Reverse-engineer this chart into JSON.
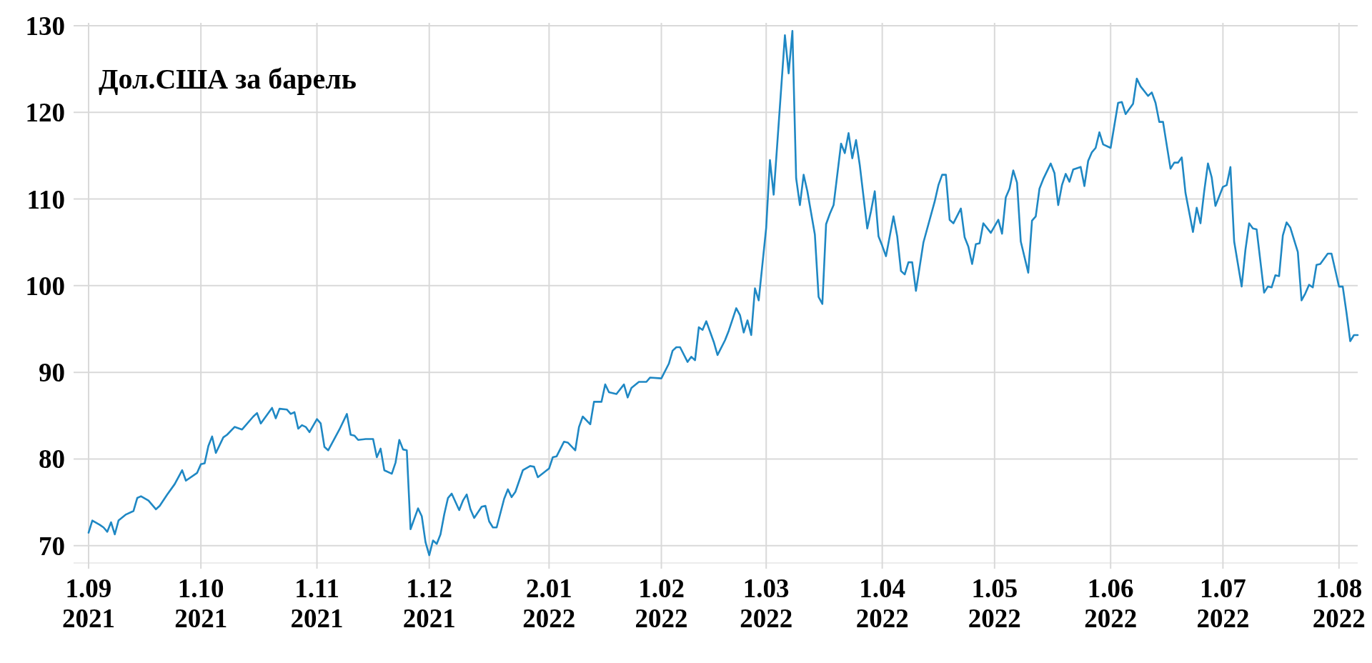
{
  "chart_data": {
    "type": "line",
    "title": "Дол.США за барель",
    "x": [
      "2021-09-01",
      "2021-09-02",
      "2021-09-04",
      "2021-09-05",
      "2021-09-06",
      "2021-09-07",
      "2021-09-08",
      "2021-09-09",
      "2021-09-11",
      "2021-09-13",
      "2021-09-14",
      "2021-09-15",
      "2021-09-17",
      "2021-09-19",
      "2021-09-20",
      "2021-09-22",
      "2021-09-24",
      "2021-09-26",
      "2021-09-27",
      "2021-09-30",
      "2021-10-01",
      "2021-10-02",
      "2021-10-03",
      "2021-10-04",
      "2021-10-05",
      "2021-10-07",
      "2021-10-08",
      "2021-10-10",
      "2021-10-12",
      "2021-10-15",
      "2021-10-16",
      "2021-10-17",
      "2021-10-20",
      "2021-10-21",
      "2021-10-22",
      "2021-10-24",
      "2021-10-25",
      "2021-10-26",
      "2021-10-27",
      "2021-10-28",
      "2021-10-29",
      "2021-10-30",
      "2021-11-01",
      "2021-11-02",
      "2021-11-03",
      "2021-11-04",
      "2021-11-06",
      "2021-11-07",
      "2021-11-09",
      "2021-11-10",
      "2021-11-11",
      "2021-11-12",
      "2021-11-14",
      "2021-11-16",
      "2021-11-17",
      "2021-11-18",
      "2021-11-19",
      "2021-11-21",
      "2021-11-22",
      "2021-11-23",
      "2021-11-24",
      "2021-11-25",
      "2021-11-26",
      "2021-11-28",
      "2021-11-29",
      "2021-11-30",
      "2021-12-01",
      "2021-12-02",
      "2021-12-03",
      "2021-12-04",
      "2021-12-05",
      "2021-12-06",
      "2021-12-07",
      "2021-12-09",
      "2021-12-10",
      "2021-12-11",
      "2021-12-12",
      "2021-12-13",
      "2021-12-15",
      "2021-12-16",
      "2021-12-17",
      "2021-12-18",
      "2021-12-19",
      "2021-12-21",
      "2021-12-22",
      "2021-12-23",
      "2021-12-24",
      "2021-12-26",
      "2021-12-28",
      "2021-12-29",
      "2021-12-30",
      "2022-01-02",
      "2022-01-03",
      "2022-01-04",
      "2022-01-06",
      "2022-01-07",
      "2022-01-09",
      "2022-01-10",
      "2022-01-11",
      "2022-01-13",
      "2022-01-14",
      "2022-01-16",
      "2022-01-17",
      "2022-01-18",
      "2022-01-20",
      "2022-01-22",
      "2022-01-23",
      "2022-01-24",
      "2022-01-26",
      "2022-01-28",
      "2022-01-29",
      "2022-02-01",
      "2022-02-03",
      "2022-02-04",
      "2022-02-05",
      "2022-02-06",
      "2022-02-08",
      "2022-02-09",
      "2022-02-10",
      "2022-02-11",
      "2022-02-12",
      "2022-02-13",
      "2022-02-15",
      "2022-02-16",
      "2022-02-18",
      "2022-02-19",
      "2022-02-21",
      "2022-02-22",
      "2022-02-23",
      "2022-02-24",
      "2022-02-25",
      "2022-02-26",
      "2022-02-27",
      "2022-03-01",
      "2022-03-02",
      "2022-03-03",
      "2022-03-06",
      "2022-03-07",
      "2022-03-08",
      "2022-03-09",
      "2022-03-10",
      "2022-03-11",
      "2022-03-12",
      "2022-03-14",
      "2022-03-15",
      "2022-03-16",
      "2022-03-17",
      "2022-03-18",
      "2022-03-19",
      "2022-03-21",
      "2022-03-22",
      "2022-03-23",
      "2022-03-24",
      "2022-03-25",
      "2022-03-26",
      "2022-03-28",
      "2022-03-29",
      "2022-03-30",
      "2022-03-31",
      "2022-04-01",
      "2022-04-02",
      "2022-04-04",
      "2022-04-05",
      "2022-04-06",
      "2022-04-07",
      "2022-04-08",
      "2022-04-09",
      "2022-04-10",
      "2022-04-12",
      "2022-04-15",
      "2022-04-16",
      "2022-04-17",
      "2022-04-18",
      "2022-04-19",
      "2022-04-20",
      "2022-04-22",
      "2022-04-23",
      "2022-04-24",
      "2022-04-25",
      "2022-04-26",
      "2022-04-27",
      "2022-04-28",
      "2022-04-30",
      "2022-05-02",
      "2022-05-03",
      "2022-05-04",
      "2022-05-05",
      "2022-05-06",
      "2022-05-07",
      "2022-05-08",
      "2022-05-10",
      "2022-05-11",
      "2022-05-12",
      "2022-05-13",
      "2022-05-14",
      "2022-05-16",
      "2022-05-17",
      "2022-05-18",
      "2022-05-19",
      "2022-05-20",
      "2022-05-21",
      "2022-05-22",
      "2022-05-24",
      "2022-05-25",
      "2022-05-26",
      "2022-05-27",
      "2022-05-28",
      "2022-05-29",
      "2022-05-30",
      "2022-06-01",
      "2022-06-03",
      "2022-06-04",
      "2022-06-05",
      "2022-06-07",
      "2022-06-08",
      "2022-06-09",
      "2022-06-11",
      "2022-06-12",
      "2022-06-13",
      "2022-06-14",
      "2022-06-15",
      "2022-06-17",
      "2022-06-18",
      "2022-06-19",
      "2022-06-20",
      "2022-06-21",
      "2022-06-23",
      "2022-06-24",
      "2022-06-25",
      "2022-06-26",
      "2022-06-27",
      "2022-06-28",
      "2022-06-29",
      "2022-07-01",
      "2022-07-02",
      "2022-07-03",
      "2022-07-04",
      "2022-07-06",
      "2022-07-07",
      "2022-07-08",
      "2022-07-09",
      "2022-07-10",
      "2022-07-12",
      "2022-07-13",
      "2022-07-14",
      "2022-07-15",
      "2022-07-16",
      "2022-07-17",
      "2022-07-18",
      "2022-07-19",
      "2022-07-21",
      "2022-07-22",
      "2022-07-23",
      "2022-07-24",
      "2022-07-25",
      "2022-07-26",
      "2022-07-27",
      "2022-07-29",
      "2022-07-30",
      "2022-08-01",
      "2022-08-02",
      "2022-08-03",
      "2022-08-04",
      "2022-08-05",
      "2022-08-06"
    ],
    "series": [
      {
        "color": "#1f88c4",
        "values": [
          71.5,
          72.9,
          72.4,
          72.1,
          71.6,
          72.7,
          71.3,
          72.9,
          73.6,
          74.0,
          75.5,
          75.7,
          75.2,
          74.2,
          74.6,
          75.9,
          77.1,
          78.7,
          77.5,
          78.4,
          79.4,
          79.5,
          81.5,
          82.6,
          80.7,
          82.5,
          82.8,
          83.7,
          83.4,
          84.9,
          85.3,
          84.1,
          85.9,
          84.7,
          85.8,
          85.7,
          85.2,
          85.4,
          83.5,
          83.9,
          83.7,
          83.1,
          84.6,
          84.1,
          81.4,
          81.0,
          82.6,
          83.4,
          85.2,
          82.8,
          82.7,
          82.2,
          82.3,
          82.3,
          80.2,
          81.2,
          78.7,
          78.3,
          79.6,
          82.2,
          81.1,
          81.0,
          71.9,
          74.3,
          73.4,
          70.4,
          68.9,
          70.6,
          70.2,
          71.3,
          73.6,
          75.5,
          76.0,
          74.1,
          75.2,
          75.9,
          74.2,
          73.2,
          74.5,
          74.6,
          72.8,
          72.1,
          72.1,
          75.4,
          76.5,
          75.6,
          76.2,
          78.7,
          79.2,
          79.1,
          77.9,
          78.9,
          80.2,
          80.3,
          82.0,
          81.9,
          81.0,
          83.7,
          84.9,
          84.0,
          86.6,
          86.6,
          88.6,
          87.7,
          87.5,
          88.6,
          87.1,
          88.2,
          88.9,
          88.9,
          89.4,
          89.3,
          91.0,
          92.5,
          92.9,
          92.9,
          91.2,
          91.8,
          91.4,
          95.2,
          94.9,
          95.9,
          93.5,
          92.0,
          93.7,
          94.8,
          97.4,
          96.6,
          94.6,
          96.0,
          94.3,
          99.7,
          98.3,
          106.7,
          114.5,
          110.5,
          128.9,
          124.5,
          129.4,
          112.4,
          109.3,
          112.8,
          110.9,
          105.9,
          98.7,
          97.9,
          107.1,
          108.3,
          109.3,
          116.4,
          115.3,
          117.6,
          114.7,
          116.8,
          113.9,
          106.6,
          108.6,
          110.9,
          105.7,
          104.6,
          103.4,
          108.0,
          105.7,
          101.7,
          101.3,
          102.7,
          102.7,
          99.4,
          105.0,
          109.7,
          111.6,
          112.8,
          112.8,
          107.6,
          107.2,
          108.9,
          105.6,
          104.5,
          102.5,
          104.8,
          104.9,
          107.2,
          106.1,
          107.6,
          106.0,
          110.2,
          111.2,
          113.3,
          111.9,
          105.1,
          101.5,
          107.5,
          108.0,
          111.2,
          112.3,
          114.1,
          113.0,
          109.3,
          111.6,
          112.9,
          112.0,
          113.4,
          113.7,
          111.5,
          114.4,
          115.4,
          115.9,
          117.7,
          116.3,
          115.9,
          121.1,
          121.2,
          119.8,
          121.0,
          123.9,
          123.0,
          121.9,
          122.3,
          121.1,
          118.9,
          118.9,
          113.5,
          114.2,
          114.2,
          114.8,
          110.7,
          106.2,
          109.0,
          107.2,
          110.9,
          114.1,
          112.5,
          109.2,
          111.4,
          111.6,
          113.7,
          105.1,
          99.9,
          104.1,
          107.2,
          106.6,
          106.5,
          99.2,
          99.9,
          99.8,
          101.2,
          101.1,
          105.8,
          107.3,
          106.7,
          103.9,
          98.3,
          99.1,
          100.1,
          99.8,
          102.4,
          102.5,
          103.7,
          103.7,
          99.9,
          99.9,
          96.9,
          93.6,
          94.3,
          94.3
        ]
      }
    ],
    "xlim": [
      "2021-08-28",
      "2022-08-06"
    ],
    "xticks": [
      {
        "value": "2021-09-01",
        "label": "1.09\n2021"
      },
      {
        "value": "2021-10-01",
        "label": "1.10\n2021"
      },
      {
        "value": "2021-11-01",
        "label": "1.11\n2021"
      },
      {
        "value": "2021-12-01",
        "label": "1.12\n2021"
      },
      {
        "value": "2022-01-02",
        "label": "2.01\n2022"
      },
      {
        "value": "2022-02-01",
        "label": "1.02\n2022"
      },
      {
        "value": "2022-03-01",
        "label": "1.03\n2022"
      },
      {
        "value": "2022-04-01",
        "label": "1.04\n2022"
      },
      {
        "value": "2022-05-01",
        "label": "1.05\n2022"
      },
      {
        "value": "2022-06-01",
        "label": "1.06\n2022"
      },
      {
        "value": "2022-07-01",
        "label": "1.07\n2022"
      },
      {
        "value": "2022-08-01",
        "label": "1.08\n2022"
      }
    ],
    "ylim": [
      68,
      130
    ],
    "yticks": [
      70,
      80,
      90,
      100,
      110,
      120,
      130
    ],
    "grid": true,
    "line_style": "solid",
    "marker": "none"
  }
}
